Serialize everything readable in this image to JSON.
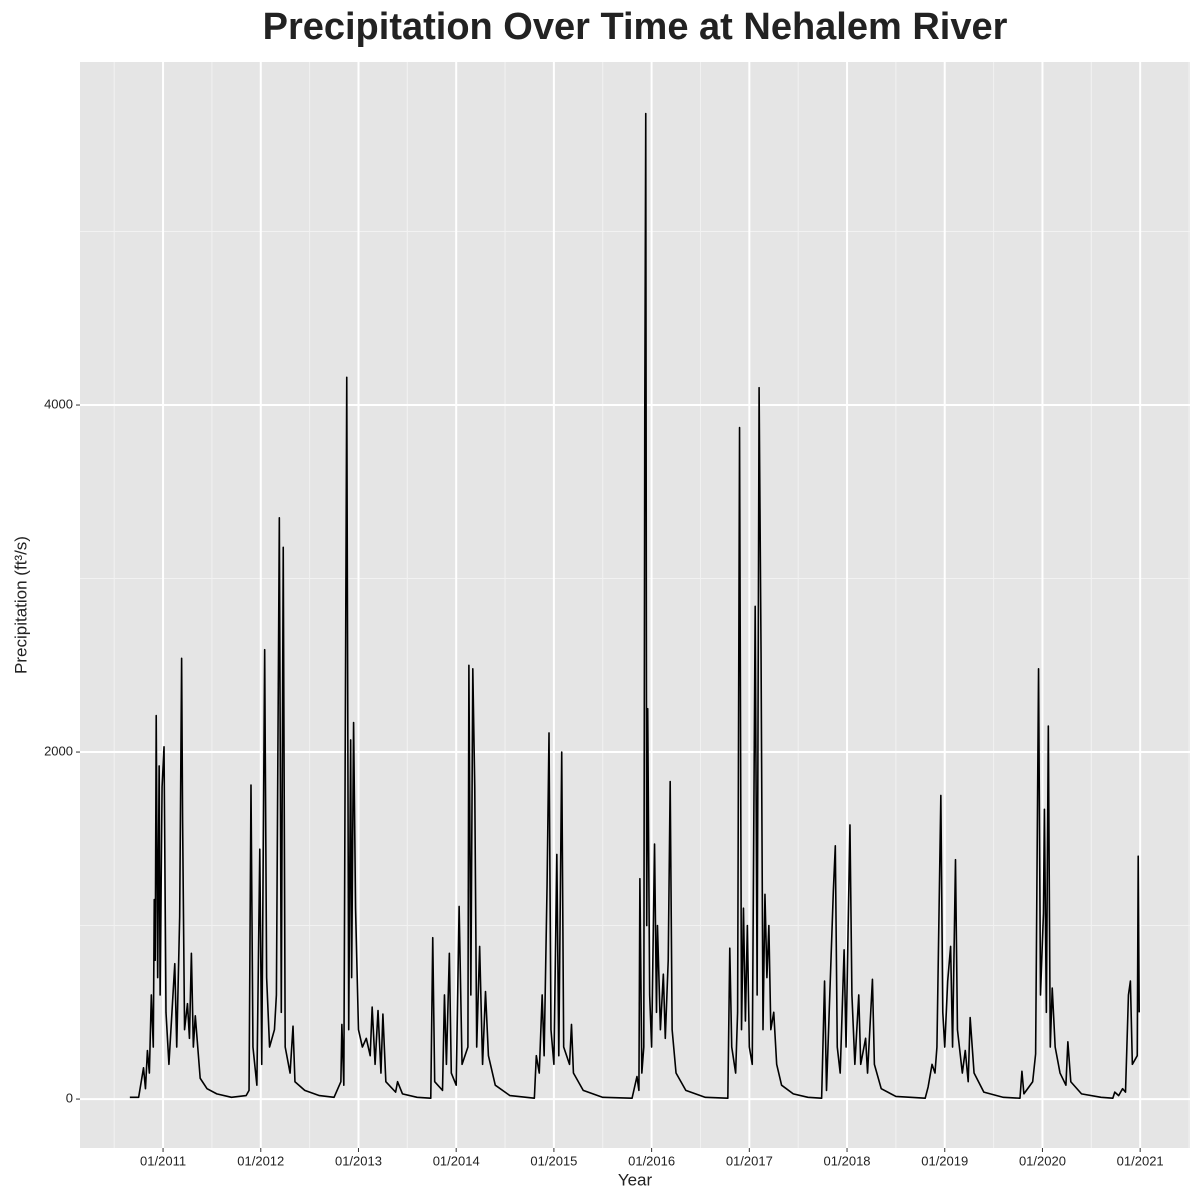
{
  "chart_data": {
    "type": "line",
    "title": "Precipitation Over Time at Nehalem River",
    "x_label": "Year",
    "y_label": "Precipitation (ft³/s)",
    "xlim": [
      2010.15,
      2021.51
    ],
    "ylim": [
      -282,
      5977
    ],
    "xticks": [
      {
        "value": 2011,
        "label": "01/2011"
      },
      {
        "value": 2012,
        "label": "01/2012"
      },
      {
        "value": 2013,
        "label": "01/2013"
      },
      {
        "value": 2014,
        "label": "01/2014"
      },
      {
        "value": 2015,
        "label": "01/2015"
      },
      {
        "value": 2016,
        "label": "01/2016"
      },
      {
        "value": 2017,
        "label": "01/2017"
      },
      {
        "value": 2018,
        "label": "01/2018"
      },
      {
        "value": 2019,
        "label": "01/2019"
      },
      {
        "value": 2020,
        "label": "01/2020"
      },
      {
        "value": 2021,
        "label": "01/2021"
      }
    ],
    "yticks": [
      0,
      2000,
      4000
    ],
    "grid": true,
    "color": "#000000",
    "x": [
      2010.66,
      2010.75,
      2010.8,
      2010.82,
      2010.84,
      2010.86,
      2010.88,
      2010.9,
      2010.91,
      2010.92,
      2010.93,
      2010.945,
      2010.96,
      2010.97,
      2010.99,
      2011.01,
      2011.03,
      2011.06,
      2011.12,
      2011.14,
      2011.17,
      2011.19,
      2011.2,
      2011.22,
      2011.25,
      2011.27,
      2011.29,
      2011.31,
      2011.33,
      2011.38,
      2011.45,
      2011.55,
      2011.7,
      2011.85,
      2011.88,
      2011.9,
      2011.92,
      2011.96,
      2011.99,
      2012.01,
      2012.04,
      2012.06,
      2012.09,
      2012.14,
      2012.16,
      2012.19,
      2012.21,
      2012.23,
      2012.25,
      2012.3,
      2012.33,
      2012.35,
      2012.45,
      2012.6,
      2012.75,
      2012.82,
      2012.83,
      2012.85,
      2012.88,
      2012.9,
      2012.92,
      2012.93,
      2012.95,
      2012.97,
      2013.0,
      2013.04,
      2013.08,
      2013.12,
      2013.14,
      2013.17,
      2013.2,
      2013.23,
      2013.25,
      2013.28,
      2013.38,
      2013.4,
      2013.45,
      2013.6,
      2013.74,
      2013.76,
      2013.78,
      2013.86,
      2013.88,
      2013.9,
      2013.93,
      2013.95,
      2014.0,
      2014.03,
      2014.06,
      2014.12,
      2014.13,
      2014.15,
      2014.17,
      2014.19,
      2014.21,
      2014.24,
      2014.27,
      2014.3,
      2014.33,
      2014.4,
      2014.55,
      2014.8,
      2014.82,
      2014.85,
      2014.88,
      2014.9,
      2014.93,
      2014.95,
      2014.97,
      2015.0,
      2015.03,
      2015.05,
      2015.08,
      2015.1,
      2015.16,
      2015.18,
      2015.2,
      2015.3,
      2015.5,
      2015.8,
      2015.85,
      2015.87,
      2015.88,
      2015.9,
      2015.92,
      2015.93,
      2015.94,
      2015.95,
      2015.96,
      2015.98,
      2016.0,
      2016.03,
      2016.05,
      2016.06,
      2016.09,
      2016.12,
      2016.14,
      2016.17,
      2016.19,
      2016.21,
      2016.25,
      2016.35,
      2016.55,
      2016.78,
      2016.8,
      2016.82,
      2016.86,
      2016.88,
      2016.9,
      2016.92,
      2016.94,
      2016.96,
      2016.98,
      2017.0,
      2017.03,
      2017.06,
      2017.08,
      2017.1,
      2017.12,
      2017.14,
      2017.16,
      2017.18,
      2017.2,
      2017.22,
      2017.25,
      2017.28,
      2017.33,
      2017.45,
      2017.6,
      2017.74,
      2017.77,
      2017.79,
      2017.86,
      2017.88,
      2017.9,
      2017.93,
      2017.97,
      2017.99,
      2018.01,
      2018.03,
      2018.05,
      2018.08,
      2018.12,
      2018.14,
      2018.19,
      2018.21,
      2018.26,
      2018.28,
      2018.35,
      2018.5,
      2018.8,
      2018.83,
      2018.87,
      2018.9,
      2018.92,
      2018.96,
      2018.98,
      2019.0,
      2019.03,
      2019.06,
      2019.08,
      2019.11,
      2019.13,
      2019.18,
      2019.21,
      2019.24,
      2019.26,
      2019.3,
      2019.4,
      2019.6,
      2019.77,
      2019.79,
      2019.81,
      2019.9,
      2019.93,
      2019.96,
      2019.98,
      2020.01,
      2020.02,
      2020.04,
      2020.06,
      2020.08,
      2020.1,
      2020.13,
      2020.18,
      2020.24,
      2020.26,
      2020.29,
      2020.4,
      2020.6,
      2020.72,
      2020.74,
      2020.78,
      2020.82,
      2020.85,
      2020.88,
      2020.9,
      2020.92,
      2020.97,
      2020.98,
      2020.99
    ],
    "values": [
      10,
      10,
      180,
      60,
      280,
      150,
      600,
      300,
      1150,
      800,
      2210,
      700,
      1920,
      600,
      1800,
      2030,
      500,
      200,
      780,
      300,
      1050,
      2540,
      1600,
      400,
      550,
      350,
      840,
      300,
      480,
      120,
      60,
      30,
      10,
      20,
      50,
      1810,
      300,
      80,
      1440,
      200,
      2590,
      700,
      300,
      400,
      600,
      3350,
      500,
      3180,
      300,
      150,
      420,
      100,
      50,
      20,
      10,
      100,
      430,
      80,
      4160,
      400,
      2070,
      700,
      2170,
      1100,
      400,
      300,
      350,
      250,
      530,
      200,
      510,
      150,
      490,
      100,
      40,
      100,
      30,
      10,
      5,
      930,
      100,
      50,
      600,
      200,
      840,
      150,
      80,
      1110,
      200,
      300,
      2500,
      600,
      2480,
      1800,
      300,
      880,
      200,
      620,
      250,
      80,
      20,
      5,
      250,
      150,
      600,
      250,
      1230,
      2110,
      400,
      200,
      1410,
      250,
      2000,
      300,
      200,
      430,
      150,
      50,
      10,
      5,
      130,
      50,
      1270,
      150,
      300,
      3950,
      5680,
      1000,
      2250,
      600,
      300,
      1470,
      500,
      1000,
      400,
      720,
      350,
      800,
      1830,
      400,
      150,
      50,
      10,
      5,
      870,
      300,
      150,
      500,
      3870,
      400,
      1100,
      450,
      1000,
      300,
      200,
      2840,
      600,
      4100,
      2570,
      400,
      1180,
      700,
      1000,
      400,
      500,
      200,
      80,
      30,
      10,
      5,
      680,
      50,
      1200,
      1460,
      300,
      150,
      860,
      300,
      950,
      1580,
      600,
      200,
      600,
      200,
      350,
      150,
      690,
      200,
      60,
      15,
      5,
      70,
      200,
      150,
      300,
      1750,
      500,
      300,
      680,
      880,
      300,
      1380,
      400,
      150,
      280,
      100,
      470,
      150,
      40,
      10,
      5,
      160,
      30,
      100,
      260,
      2480,
      600,
      1070,
      1670,
      500,
      2150,
      300,
      640,
      300,
      150,
      80,
      330,
      100,
      30,
      10,
      5,
      40,
      20,
      60,
      40,
      600,
      680,
      200,
      250,
      1400,
      500
    ]
  }
}
